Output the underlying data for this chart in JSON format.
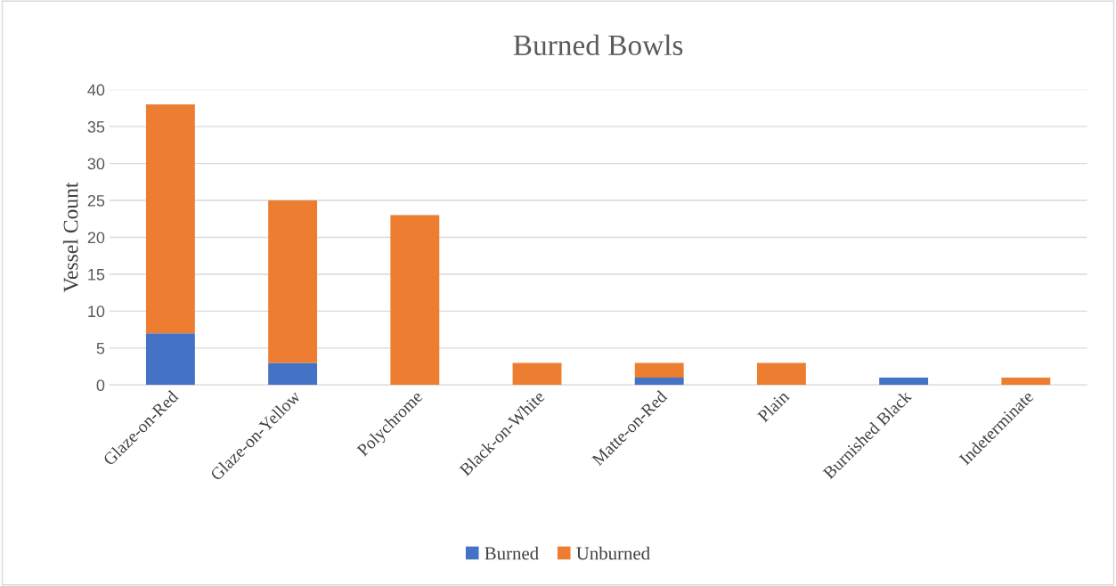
{
  "chart_data": {
    "type": "bar",
    "title": "Burned Bowls",
    "ylabel": "Vessel Count",
    "categories": [
      "Glaze-on-Red",
      "Glaze-on-Yellow",
      "Polychrome",
      "Black-on-White",
      "Matte-on-Red",
      "Plain",
      "Burnished Black",
      "Indeterminate"
    ],
    "series": [
      {
        "name": "Burned",
        "color": "#4472c4",
        "values": [
          7,
          3,
          0,
          0,
          1,
          0,
          1,
          0
        ]
      },
      {
        "name": "Unburned",
        "color": "#ed7d31",
        "values": [
          31,
          22,
          23,
          3,
          2,
          3,
          0,
          1
        ]
      }
    ],
    "stacked": true,
    "ylim": [
      0,
      40
    ],
    "yticks": [
      0,
      5,
      10,
      15,
      20,
      25,
      30,
      35,
      40
    ],
    "grid": "y",
    "legend": "bottom"
  }
}
